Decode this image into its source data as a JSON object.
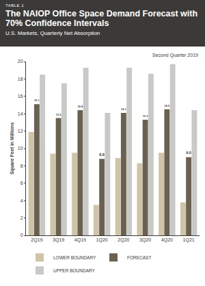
{
  "chart_data": {
    "type": "bar",
    "table_label": "TABLE 1",
    "title": "The NAIOP Office Space Demand Forecast with 70% Confidence Intervals",
    "subtitle": "U.S. Markets, Quarterly Net Absorption",
    "annotations": [
      {
        "text": "Second Quarter 2019"
      }
    ],
    "y_label": "Square Feet in Millions",
    "categories": [
      "2Q19",
      "3Q19",
      "4Q19",
      "1Q20",
      "2Q20",
      "3Q20",
      "4Q20",
      "1Q21"
    ],
    "series": [
      {
        "name": "LOWER BOUNDARY",
        "color": "#cfc4a8",
        "values": [
          11.9,
          9.4,
          9.5,
          3.5,
          8.9,
          8.3,
          9.5,
          3.8
        ]
      },
      {
        "name": "FORECAST",
        "color": "#6b6152",
        "values": [
          15.1,
          13.5,
          14.4,
          8.8,
          14.1,
          13.3,
          14.5,
          9.0
        ],
        "data_labels": true,
        "value_labels": [
          "15.1",
          "13.5",
          "14.4",
          "8.8",
          "14.1",
          "13.3",
          "14.5",
          "9.0"
        ]
      },
      {
        "name": "UPPER BOUNDARY",
        "color": "#c9c9c7",
        "values": [
          18.5,
          17.5,
          19.3,
          14.1,
          19.3,
          18.6,
          19.7,
          14.4
        ]
      }
    ],
    "ylim": [
      0,
      20
    ],
    "yticks": [
      0,
      2,
      4,
      6,
      8,
      10,
      12,
      14,
      16,
      18,
      20
    ],
    "grid": false,
    "legend": "bottom"
  }
}
